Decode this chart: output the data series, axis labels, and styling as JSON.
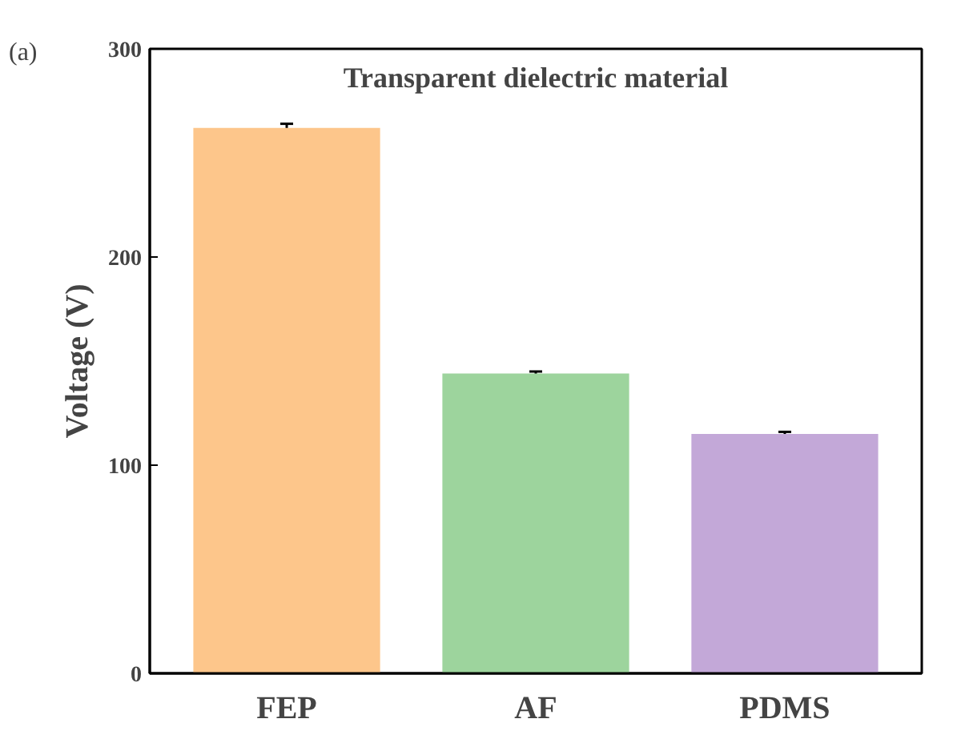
{
  "chart_data": {
    "type": "bar",
    "title": "Transparent dielectric material",
    "ylabel": "Voltage (V)",
    "annotations": [
      "(a)"
    ],
    "categories": [
      "FEP",
      "AF",
      "PDMS"
    ],
    "values": [
      262,
      144,
      115
    ],
    "errors": [
      2,
      1,
      1
    ],
    "colors": [
      "#fdc68b",
      "#9dd49d",
      "#c3a8d8"
    ],
    "ylim": [
      0,
      300
    ],
    "yticks": [
      0,
      100,
      200,
      300
    ],
    "grid": false
  }
}
